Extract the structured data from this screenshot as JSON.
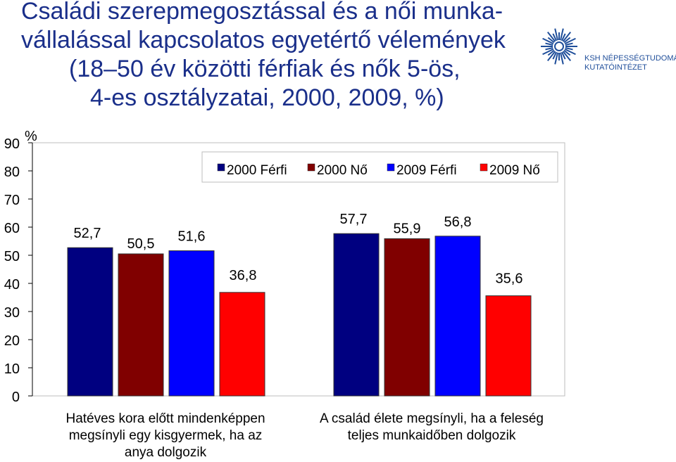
{
  "title_lines": [
    "Családi szerepmegosztással és a női munka-",
    "vállalással kapcsolatos egyetértő vélemények",
    "(18–50 év közötti férfiak és nők 5-ös,",
    "4-es osztályzatai, 2000, 2009, %)"
  ],
  "logo": {
    "line1": "KSH NÉPESSÉGTUDOMÁNYI",
    "line2": "KUTATÓINTÉZET",
    "color": "#1f4e9a"
  },
  "chart_data": {
    "type": "bar",
    "ylabel": "%",
    "ylim": [
      0,
      90
    ],
    "yticks": [
      0,
      10,
      20,
      30,
      40,
      50,
      60,
      70,
      80,
      90
    ],
    "categories": [
      [
        "Hatéves kora előtt mindenképpen",
        "megsínyli egy kisgyermek, ha az",
        "anya dolgozik"
      ],
      [
        "A család élete megsínyli, ha a feleség",
        "teljes munkaidőben dolgozik"
      ]
    ],
    "series": [
      {
        "name": "2000 Férfi",
        "color": "#000080",
        "values": [
          52.7,
          57.7
        ],
        "labels": [
          "52,7",
          "57,7"
        ]
      },
      {
        "name": "2000 Nő",
        "color": "#800000",
        "values": [
          50.5,
          55.9
        ],
        "labels": [
          "50,5",
          "55,9"
        ]
      },
      {
        "name": "2009 Férfi",
        "color": "#0000ff",
        "values": [
          51.6,
          56.8
        ],
        "labels": [
          "51,6",
          "56,8"
        ]
      },
      {
        "name": "2009 Nő",
        "color": "#ff0000",
        "values": [
          36.8,
          35.6
        ],
        "labels": [
          "36,8",
          "35,6"
        ]
      }
    ],
    "legend_position": "top-right",
    "grid": false
  }
}
